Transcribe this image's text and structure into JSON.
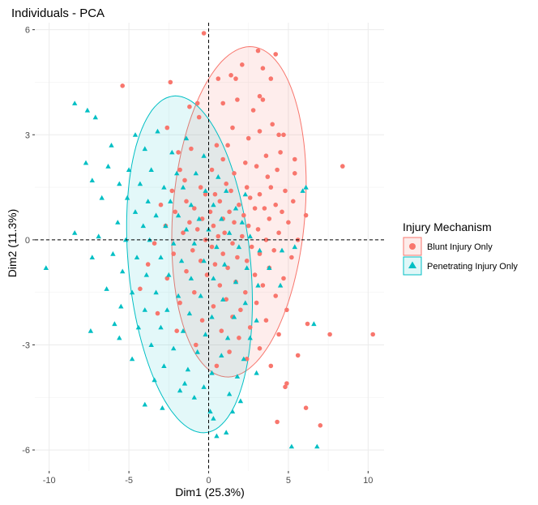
{
  "chart_data": {
    "type": "scatter",
    "title": "Individuals - PCA",
    "xlabel": "Dim1 (25.3%)",
    "ylabel": "Dim2 (11.3%)",
    "xlim": [
      -10.9,
      11.0
    ],
    "ylim": [
      -6.6,
      6.2
    ],
    "x_ticks": [
      -10,
      -5,
      0,
      5,
      10
    ],
    "y_ticks": [
      -6,
      -3,
      0,
      3,
      6
    ],
    "x_tick_labels": [
      "-10",
      "-5",
      "0",
      "5",
      "10"
    ],
    "y_tick_labels": [
      "-6",
      "-3",
      "0",
      "3",
      "6"
    ],
    "grid": true,
    "reference_lines": {
      "x": 0,
      "y": 0,
      "style": "dashed"
    },
    "legend": {
      "title": "Injury Mechanism",
      "position": "right"
    },
    "series": [
      {
        "name": "Blunt Injury Only",
        "marker": "circle",
        "color": "#F8766D",
        "ellipse": {
          "center": [
            1.9,
            0.8
          ],
          "semi_major": 4.9,
          "semi_minor": 4.0,
          "angle_deg": 62
        },
        "points": [
          [
            -0.3,
            5.9
          ],
          [
            2.1,
            5.0
          ],
          [
            3.1,
            5.4
          ],
          [
            4.2,
            5.3
          ],
          [
            3.4,
            4.9
          ],
          [
            1.4,
            4.7
          ],
          [
            1.7,
            4.6
          ],
          [
            0.6,
            4.6
          ],
          [
            3.9,
            4.6
          ],
          [
            -2.4,
            4.5
          ],
          [
            -5.4,
            4.4
          ],
          [
            3.2,
            4.1
          ],
          [
            1.8,
            4.0
          ],
          [
            3.4,
            4.0
          ],
          [
            0.9,
            3.9
          ],
          [
            -0.7,
            3.9
          ],
          [
            -1.2,
            3.8
          ],
          [
            2.8,
            3.7
          ],
          [
            -0.6,
            3.5
          ],
          [
            4.0,
            3.3
          ],
          [
            1.5,
            3.2
          ],
          [
            -2.6,
            3.2
          ],
          [
            3.2,
            3.1
          ],
          [
            4.4,
            3.0
          ],
          [
            4.7,
            3.0
          ],
          [
            2.5,
            2.9
          ],
          [
            1.2,
            2.7
          ],
          [
            0.5,
            2.7
          ],
          [
            -1.1,
            2.6
          ],
          [
            -1.9,
            2.5
          ],
          [
            4.5,
            2.5
          ],
          [
            3.6,
            2.4
          ],
          [
            5.4,
            2.3
          ],
          [
            0.9,
            2.3
          ],
          [
            2.3,
            2.2
          ],
          [
            3.0,
            2.1
          ],
          [
            8.4,
            2.1
          ],
          [
            -1.8,
            2.0
          ],
          [
            0.2,
            2.0
          ],
          [
            4.3,
            2.0
          ],
          [
            1.6,
            1.9
          ],
          [
            5.4,
            1.9
          ],
          [
            3.7,
            1.8
          ],
          [
            -1.5,
            1.7
          ],
          [
            1.1,
            1.6
          ],
          [
            3.9,
            1.5
          ],
          [
            -0.5,
            1.5
          ],
          [
            2.4,
            1.5
          ],
          [
            -2.3,
            1.4
          ],
          [
            4.8,
            1.4
          ],
          [
            1.4,
            1.4
          ],
          [
            -0.2,
            1.3
          ],
          [
            0.4,
            1.3
          ],
          [
            3.2,
            1.3
          ],
          [
            2.6,
            1.2
          ],
          [
            0.7,
            1.1
          ],
          [
            -1.4,
            1.1
          ],
          [
            5.3,
            1.1
          ],
          [
            1.9,
            1.0
          ],
          [
            4.2,
            1.0
          ],
          [
            -3.0,
            1.0
          ],
          [
            2.9,
            0.9
          ],
          [
            3.5,
            0.9
          ],
          [
            -0.9,
            0.9
          ],
          [
            0.1,
            0.8
          ],
          [
            1.3,
            0.8
          ],
          [
            4.6,
            0.8
          ],
          [
            -2.1,
            0.8
          ],
          [
            6.1,
            0.7
          ],
          [
            2.2,
            0.7
          ],
          [
            -0.4,
            0.6
          ],
          [
            3.8,
            0.6
          ],
          [
            0.9,
            0.6
          ],
          [
            5.0,
            0.5
          ],
          [
            -1.2,
            0.5
          ],
          [
            1.6,
            0.5
          ],
          [
            2.5,
            0.4
          ],
          [
            -2.7,
            0.4
          ],
          [
            0.3,
            0.4
          ],
          [
            3.1,
            0.3
          ],
          [
            -0.7,
            0.3
          ],
          [
            4.4,
            0.2
          ],
          [
            1.0,
            0.2
          ],
          [
            -1.6,
            0.2
          ],
          [
            2.1,
            0.1
          ],
          [
            0.6,
            0.1
          ],
          [
            3.6,
            0.0
          ],
          [
            -0.2,
            0.0
          ],
          [
            5.6,
            0.0
          ],
          [
            -3.4,
            -0.1
          ],
          [
            1.5,
            -0.1
          ],
          [
            2.7,
            -0.2
          ],
          [
            0.2,
            -0.2
          ],
          [
            -1.0,
            -0.3
          ],
          [
            4.1,
            -0.3
          ],
          [
            3.2,
            -0.4
          ],
          [
            0.9,
            -0.4
          ],
          [
            -2.2,
            -0.4
          ],
          [
            1.8,
            -0.5
          ],
          [
            5.2,
            -0.5
          ],
          [
            -0.5,
            -0.6
          ],
          [
            2.4,
            -0.6
          ],
          [
            -3.8,
            -0.7
          ],
          [
            0.4,
            -0.7
          ],
          [
            3.8,
            -0.8
          ],
          [
            1.2,
            -0.8
          ],
          [
            -1.4,
            -0.9
          ],
          [
            2.9,
            -1.0
          ],
          [
            -0.1,
            -1.0
          ],
          [
            4.7,
            -1.1
          ],
          [
            -2.6,
            -1.1
          ],
          [
            1.7,
            -1.2
          ],
          [
            3.4,
            -1.3
          ],
          [
            0.7,
            -1.3
          ],
          [
            -4.3,
            -1.4
          ],
          [
            2.3,
            -1.5
          ],
          [
            -0.9,
            -1.5
          ],
          [
            4.2,
            -1.6
          ],
          [
            1.1,
            -1.7
          ],
          [
            -1.8,
            -1.8
          ],
          [
            3.0,
            -1.8
          ],
          [
            0.3,
            -1.9
          ],
          [
            2.0,
            -2.0
          ],
          [
            4.9,
            -2.0
          ],
          [
            -3.2,
            -2.1
          ],
          [
            1.5,
            -2.2
          ],
          [
            -0.4,
            -2.3
          ],
          [
            3.6,
            -2.3
          ],
          [
            2.6,
            -2.5
          ],
          [
            0.8,
            -2.6
          ],
          [
            -2.0,
            -2.6
          ],
          [
            4.4,
            -2.7
          ],
          [
            1.9,
            -2.8
          ],
          [
            7.6,
            -2.7
          ],
          [
            10.3,
            -2.7
          ],
          [
            6.2,
            -2.4
          ],
          [
            -0.8,
            -3.0
          ],
          [
            3.2,
            -3.1
          ],
          [
            1.3,
            -3.2
          ],
          [
            2.4,
            -3.4
          ],
          [
            5.6,
            -3.3
          ],
          [
            0.5,
            -3.6
          ],
          [
            3.9,
            -3.6
          ],
          [
            4.9,
            -4.1
          ],
          [
            4.8,
            -4.2
          ],
          [
            6.1,
            -4.8
          ],
          [
            7.0,
            -5.3
          ],
          [
            4.3,
            -5.2
          ]
        ]
      },
      {
        "name": "Penetrating Injury Only",
        "marker": "triangle",
        "color": "#00BFC4",
        "ellipse": {
          "center": [
            -1.2,
            -0.7
          ],
          "semi_major": 5.0,
          "semi_minor": 3.7,
          "angle_deg": 114
        },
        "points": [
          [
            -8.4,
            3.9
          ],
          [
            -7.6,
            3.7
          ],
          [
            -7.1,
            3.5
          ],
          [
            -4.6,
            3.0
          ],
          [
            -6.1,
            2.7
          ],
          [
            -3.2,
            3.1
          ],
          [
            -1.4,
            2.9
          ],
          [
            -4.0,
            2.6
          ],
          [
            -2.3,
            2.5
          ],
          [
            -0.3,
            2.4
          ],
          [
            -7.7,
            2.2
          ],
          [
            -6.3,
            2.1
          ],
          [
            -5.0,
            2.0
          ],
          [
            -3.6,
            2.0
          ],
          [
            -2.0,
            1.9
          ],
          [
            -0.8,
            1.9
          ],
          [
            0.6,
            1.8
          ],
          [
            -7.3,
            1.7
          ],
          [
            -5.6,
            1.6
          ],
          [
            -4.3,
            1.6
          ],
          [
            -2.8,
            1.5
          ],
          [
            -1.6,
            1.5
          ],
          [
            -0.2,
            1.4
          ],
          [
            1.1,
            1.4
          ],
          [
            2.3,
            1.3
          ],
          [
            -6.7,
            1.2
          ],
          [
            -5.1,
            1.2
          ],
          [
            -3.8,
            1.1
          ],
          [
            -2.4,
            1.1
          ],
          [
            -1.1,
            1.0
          ],
          [
            0.3,
            1.0
          ],
          [
            1.7,
            0.9
          ],
          [
            5.9,
            1.4
          ],
          [
            6.1,
            1.5
          ],
          [
            -4.6,
            0.8
          ],
          [
            -3.3,
            0.7
          ],
          [
            -1.9,
            0.7
          ],
          [
            -0.6,
            0.6
          ],
          [
            0.8,
            0.6
          ],
          [
            2.1,
            0.5
          ],
          [
            -5.7,
            0.5
          ],
          [
            -4.1,
            0.4
          ],
          [
            -2.7,
            0.4
          ],
          [
            -1.4,
            0.3
          ],
          [
            0.0,
            0.3
          ],
          [
            1.3,
            0.2
          ],
          [
            2.6,
            0.1
          ],
          [
            -8.4,
            0.2
          ],
          [
            -6.9,
            0.1
          ],
          [
            -5.2,
            0.0
          ],
          [
            -3.7,
            0.0
          ],
          [
            -2.2,
            -0.1
          ],
          [
            -0.9,
            -0.1
          ],
          [
            0.5,
            -0.2
          ],
          [
            1.9,
            -0.2
          ],
          [
            3.2,
            -0.3
          ],
          [
            4.6,
            -0.3
          ],
          [
            5.4,
            -0.2
          ],
          [
            -10.2,
            -0.8
          ],
          [
            -7.3,
            -0.5
          ],
          [
            -6.0,
            -0.4
          ],
          [
            -4.5,
            -0.5
          ],
          [
            -3.0,
            -0.5
          ],
          [
            -1.7,
            -0.6
          ],
          [
            -0.3,
            -0.6
          ],
          [
            1.0,
            -0.7
          ],
          [
            2.4,
            -0.8
          ],
          [
            3.8,
            -0.8
          ],
          [
            -5.4,
            -0.9
          ],
          [
            -3.9,
            -1.0
          ],
          [
            -2.5,
            -1.0
          ],
          [
            -1.1,
            -1.1
          ],
          [
            0.3,
            -1.1
          ],
          [
            1.7,
            -1.2
          ],
          [
            3.1,
            -1.3
          ],
          [
            4.5,
            -1.3
          ],
          [
            -6.4,
            -1.4
          ],
          [
            -4.8,
            -1.5
          ],
          [
            -3.3,
            -1.5
          ],
          [
            -1.9,
            -1.6
          ],
          [
            -0.5,
            -1.6
          ],
          [
            0.9,
            -1.7
          ],
          [
            2.3,
            -1.8
          ],
          [
            -5.5,
            -1.9
          ],
          [
            -4.0,
            -2.0
          ],
          [
            -2.6,
            -2.0
          ],
          [
            -1.2,
            -2.1
          ],
          [
            0.2,
            -2.2
          ],
          [
            1.6,
            -2.2
          ],
          [
            3.0,
            -2.3
          ],
          [
            -5.9,
            -2.4
          ],
          [
            -4.4,
            -2.5
          ],
          [
            -3.0,
            -2.5
          ],
          [
            -1.6,
            -2.6
          ],
          [
            -0.2,
            -2.7
          ],
          [
            1.2,
            -2.8
          ],
          [
            2.6,
            -2.8
          ],
          [
            6.6,
            -2.4
          ],
          [
            -7.4,
            -2.6
          ],
          [
            -5.6,
            -2.8
          ],
          [
            -3.6,
            -3.0
          ],
          [
            -2.2,
            -3.1
          ],
          [
            -0.7,
            -3.2
          ],
          [
            0.8,
            -3.3
          ],
          [
            2.2,
            -3.4
          ],
          [
            -4.8,
            -3.4
          ],
          [
            -2.8,
            -3.6
          ],
          [
            -1.3,
            -3.7
          ],
          [
            0.2,
            -3.8
          ],
          [
            1.8,
            -3.9
          ],
          [
            3.0,
            -3.8
          ],
          [
            -3.4,
            -4.0
          ],
          [
            -1.8,
            -4.3
          ],
          [
            -0.3,
            -4.2
          ],
          [
            1.3,
            -4.4
          ],
          [
            -4.0,
            -4.7
          ],
          [
            -2.9,
            -4.8
          ],
          [
            0.1,
            -4.9
          ],
          [
            1.5,
            -4.9
          ],
          [
            0.3,
            -5.1
          ],
          [
            0.5,
            -5.6
          ],
          [
            1.1,
            -5.5
          ],
          [
            5.2,
            -5.9
          ],
          [
            6.8,
            -5.9
          ],
          [
            -1.5,
            -4.1
          ],
          [
            2.0,
            -4.6
          ],
          [
            -0.9,
            -4.5
          ]
        ]
      }
    ]
  }
}
